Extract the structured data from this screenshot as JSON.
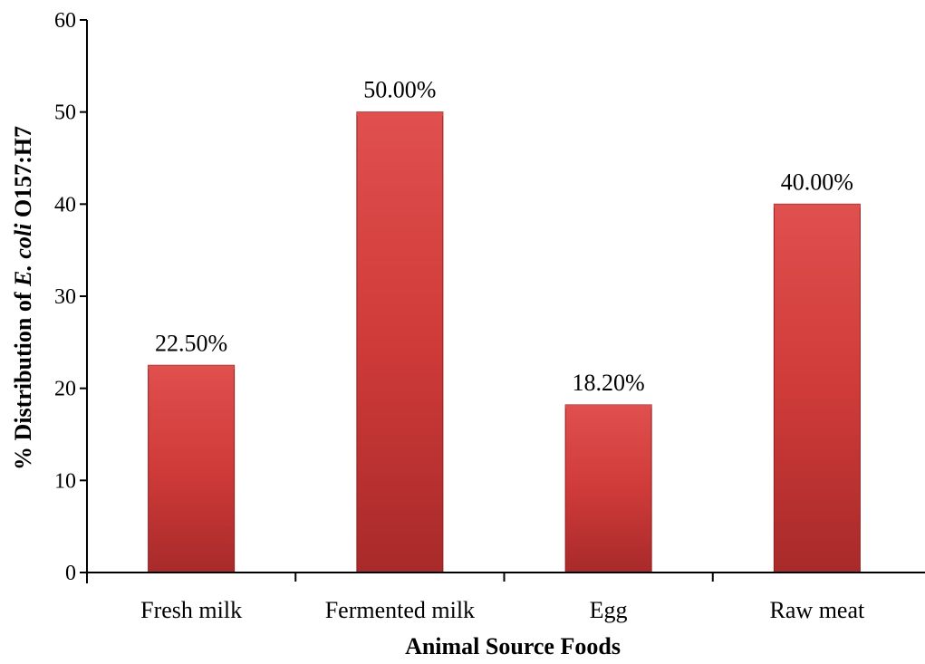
{
  "chart_data": {
    "type": "bar",
    "categories": [
      "Fresh milk",
      "Fermented milk",
      "Egg",
      "Raw meat"
    ],
    "values": [
      22.5,
      50.0,
      18.2,
      40.0
    ],
    "data_labels": [
      "22.50%",
      "50.00%",
      "18.20%",
      "40.00%"
    ],
    "title": "",
    "xlabel": "Animal Source Foods",
    "ylabel_parts": {
      "prefix": "% Distribution of ",
      "italic": "E. coli",
      "suffix": " O157:H7"
    },
    "ylim": [
      0,
      60
    ],
    "yticks": [
      0,
      10,
      20,
      30,
      40,
      50,
      60
    ],
    "grid": false,
    "legend": "none",
    "colors": {
      "bar_light": "#e0504e",
      "bar_mid": "#cf3b39",
      "bar_dark": "#a82a2a",
      "bar_edge": "#8c1f1f"
    }
  }
}
